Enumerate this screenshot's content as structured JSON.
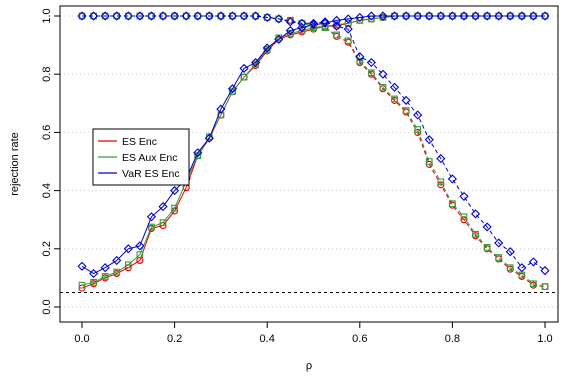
{
  "chart_data": {
    "type": "line",
    "xlabel": "ρ",
    "ylabel": "rejection rate",
    "xlim": [
      0,
      1
    ],
    "ylim": [
      0,
      1
    ],
    "x_ticks": [
      "0.0",
      "0.2",
      "0.4",
      "0.6",
      "0.8",
      "1.0"
    ],
    "y_ticks": [
      "0.0",
      "0.2",
      "0.4",
      "0.6",
      "0.8",
      "1.0"
    ],
    "reference_line": 0.05,
    "grid": "horizontal dotted",
    "legend_position": "left",
    "x": [
      0,
      0.025,
      0.05,
      0.075,
      0.1,
      0.125,
      0.15,
      0.175,
      0.2,
      0.225,
      0.25,
      0.275,
      0.3,
      0.325,
      0.35,
      0.375,
      0.4,
      0.425,
      0.45,
      0.475,
      0.5,
      0.525,
      0.55,
      0.575,
      0.6,
      0.625,
      0.65,
      0.675,
      0.7,
      0.725,
      0.75,
      0.775,
      0.8,
      0.825,
      0.85,
      0.875,
      0.9,
      0.925,
      0.95,
      0.975,
      1.0
    ],
    "series": [
      {
        "name": "ES Enc",
        "color": "#e00000",
        "style": "solid",
        "marker": "circle",
        "values": [
          0.065,
          0.08,
          0.1,
          0.115,
          0.135,
          0.16,
          0.27,
          0.28,
          0.33,
          0.41,
          0.52,
          0.58,
          0.66,
          0.74,
          0.79,
          0.83,
          0.88,
          0.92,
          0.935,
          0.945,
          0.955,
          0.965,
          0.965,
          0.975,
          0.985,
          0.99,
          0.995,
          1.0,
          1.0,
          1.0,
          1.0,
          1.0,
          1.0,
          1.0,
          1.0,
          1.0,
          1.0,
          1.0,
          1.0,
          1.0,
          1.0
        ]
      },
      {
        "name": "ES Aux Enc",
        "color": "#3a9a3a",
        "style": "solid",
        "marker": "square",
        "values": [
          0.075,
          0.085,
          0.105,
          0.12,
          0.145,
          0.18,
          0.275,
          0.29,
          0.34,
          0.43,
          0.52,
          0.585,
          0.66,
          0.74,
          0.79,
          0.835,
          0.885,
          0.925,
          0.94,
          0.95,
          0.96,
          0.965,
          0.97,
          0.975,
          0.985,
          0.99,
          0.995,
          1.0,
          1.0,
          1.0,
          1.0,
          1.0,
          1.0,
          1.0,
          1.0,
          1.0,
          1.0,
          1.0,
          1.0,
          1.0,
          1.0
        ]
      },
      {
        "name": "VaR ES Enc",
        "color": "#0000d0",
        "style": "solid",
        "marker": "diamond",
        "values": [
          0.14,
          0.115,
          0.135,
          0.16,
          0.2,
          0.21,
          0.31,
          0.345,
          0.4,
          0.44,
          0.53,
          0.58,
          0.68,
          0.75,
          0.82,
          0.84,
          0.89,
          0.92,
          0.95,
          0.96,
          0.97,
          0.975,
          0.985,
          0.99,
          0.995,
          1.0,
          1.0,
          1.0,
          1.0,
          1.0,
          1.0,
          1.0,
          1.0,
          1.0,
          1.0,
          1.0,
          1.0,
          1.0,
          1.0,
          1.0,
          1.0
        ]
      },
      {
        "name": "",
        "color": "#e00000",
        "style": "dashed",
        "marker": "circle",
        "values": [
          1.0,
          1.0,
          1.0,
          1.0,
          1.0,
          1.0,
          1.0,
          1.0,
          1.0,
          1.0,
          1.0,
          1.0,
          1.0,
          1.0,
          1.0,
          1.0,
          0.995,
          0.99,
          0.985,
          0.975,
          0.965,
          0.96,
          0.93,
          0.91,
          0.84,
          0.8,
          0.75,
          0.71,
          0.67,
          0.6,
          0.49,
          0.42,
          0.35,
          0.3,
          0.245,
          0.2,
          0.165,
          0.13,
          0.105,
          0.075,
          0.07
        ]
      },
      {
        "name": "",
        "color": "#3a9a3a",
        "style": "dashed",
        "marker": "square",
        "values": [
          1.0,
          1.0,
          1.0,
          1.0,
          1.0,
          1.0,
          1.0,
          1.0,
          1.0,
          1.0,
          1.0,
          1.0,
          1.0,
          1.0,
          1.0,
          1.0,
          0.995,
          0.99,
          0.985,
          0.975,
          0.965,
          0.96,
          0.935,
          0.915,
          0.845,
          0.805,
          0.755,
          0.715,
          0.675,
          0.61,
          0.5,
          0.43,
          0.355,
          0.31,
          0.25,
          0.205,
          0.17,
          0.135,
          0.11,
          0.08,
          0.07
        ]
      },
      {
        "name": "",
        "color": "#0000d0",
        "style": "dashed",
        "marker": "diamond",
        "values": [
          1.0,
          1.0,
          1.0,
          1.0,
          1.0,
          1.0,
          1.0,
          1.0,
          1.0,
          1.0,
          1.0,
          1.0,
          1.0,
          1.0,
          1.0,
          1.0,
          0.995,
          0.99,
          0.98,
          0.975,
          0.975,
          0.98,
          0.965,
          0.955,
          0.86,
          0.84,
          0.8,
          0.755,
          0.71,
          0.66,
          0.575,
          0.51,
          0.44,
          0.38,
          0.32,
          0.275,
          0.22,
          0.19,
          0.135,
          0.155,
          0.125
        ]
      }
    ]
  }
}
